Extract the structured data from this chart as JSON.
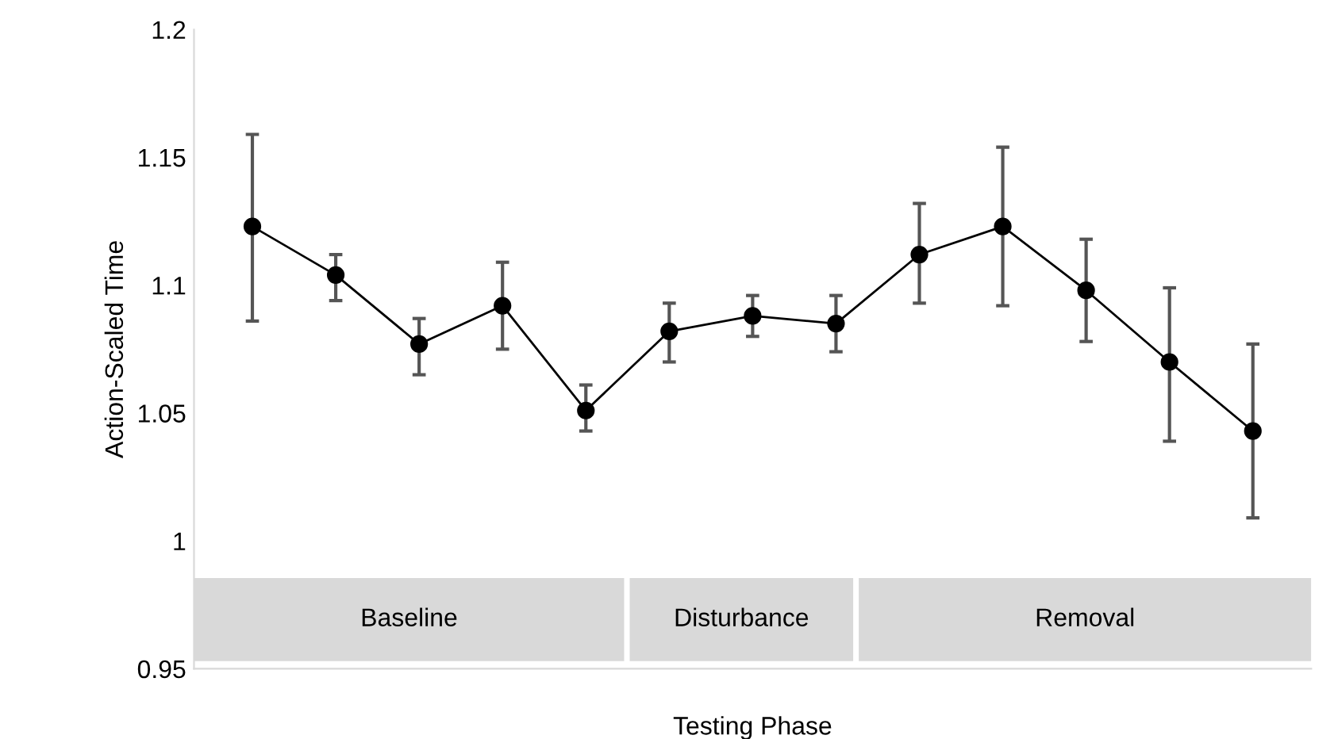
{
  "chart_data": {
    "type": "line",
    "xlabel": "Testing Phase",
    "ylabel": "Action-Scaled Time",
    "categories": [
      null,
      null,
      null,
      null,
      null,
      null,
      null,
      null,
      null,
      null,
      null,
      null,
      null
    ],
    "series": [
      {
        "color": "#000000",
        "values": [
          1.123,
          1.104,
          1.077,
          1.092,
          1.051,
          1.082,
          1.088,
          1.085,
          1.112,
          1.123,
          1.098,
          1.07,
          1.043
        ],
        "errors": [
          [
            1.086,
            1.159
          ],
          [
            1.094,
            1.112
          ],
          [
            1.065,
            1.087
          ],
          [
            1.075,
            1.109
          ],
          [
            1.043,
            1.061
          ],
          [
            1.07,
            1.093
          ],
          [
            1.08,
            1.096
          ],
          [
            1.074,
            1.096
          ],
          [
            1.093,
            1.132
          ],
          [
            1.092,
            1.154
          ],
          [
            1.078,
            1.118
          ],
          [
            1.039,
            1.099
          ],
          [
            1.009,
            1.077
          ]
        ]
      }
    ],
    "annotations": [
      "Baseline",
      "Disturbance",
      "Removal"
    ],
    "ylim": [
      0.95,
      1.2
    ],
    "yticks": [
      0.95,
      1,
      1.05,
      1.1,
      1.15,
      1.2
    ],
    "marker": "circle",
    "line_style": "solid",
    "grid": false,
    "legend": false
  }
}
